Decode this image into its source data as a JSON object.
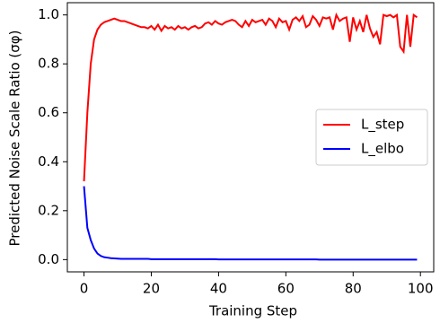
{
  "chart_data": {
    "type": "line",
    "xlabel": "Training Step",
    "ylabel": "Predicted Noise Scale Ratio (σφ)",
    "x": [
      0,
      1,
      2,
      3,
      4,
      5,
      6,
      7,
      8,
      9,
      10,
      11,
      12,
      13,
      14,
      15,
      16,
      17,
      18,
      19,
      20,
      21,
      22,
      23,
      24,
      25,
      26,
      27,
      28,
      29,
      30,
      31,
      32,
      33,
      34,
      35,
      36,
      37,
      38,
      39,
      40,
      41,
      42,
      43,
      44,
      45,
      46,
      47,
      48,
      49,
      50,
      51,
      52,
      53,
      54,
      55,
      56,
      57,
      58,
      59,
      60,
      61,
      62,
      63,
      64,
      65,
      66,
      67,
      68,
      69,
      70,
      71,
      72,
      73,
      74,
      75,
      76,
      77,
      78,
      79,
      80,
      81,
      82,
      83,
      84,
      85,
      86,
      87,
      88,
      89,
      90,
      91,
      92,
      93,
      94,
      95,
      96,
      97,
      98,
      99
    ],
    "series": [
      {
        "name": "L_step",
        "color": "#ff0000",
        "values": [
          0.32,
          0.6,
          0.8,
          0.9,
          0.94,
          0.96,
          0.97,
          0.975,
          0.98,
          0.985,
          0.98,
          0.975,
          0.975,
          0.97,
          0.965,
          0.96,
          0.955,
          0.95,
          0.95,
          0.945,
          0.955,
          0.94,
          0.96,
          0.935,
          0.955,
          0.945,
          0.95,
          0.94,
          0.955,
          0.945,
          0.95,
          0.94,
          0.95,
          0.955,
          0.945,
          0.95,
          0.965,
          0.97,
          0.96,
          0.975,
          0.965,
          0.96,
          0.97,
          0.975,
          0.98,
          0.975,
          0.96,
          0.95,
          0.975,
          0.955,
          0.98,
          0.97,
          0.975,
          0.98,
          0.96,
          0.985,
          0.975,
          0.95,
          0.985,
          0.97,
          0.975,
          0.94,
          0.98,
          0.99,
          0.975,
          0.995,
          0.95,
          0.96,
          0.995,
          0.98,
          0.955,
          0.99,
          0.985,
          0.99,
          0.94,
          1.0,
          0.975,
          0.985,
          0.99,
          0.89,
          0.99,
          0.94,
          0.975,
          0.93,
          1.0,
          0.945,
          0.91,
          0.93,
          0.88,
          1.0,
          0.995,
          1.0,
          0.99,
          1.0,
          0.87,
          0.85,
          1.0,
          0.87,
          1.0,
          0.99
        ]
      },
      {
        "name": "L_elbo",
        "color": "#0000ff",
        "values": [
          0.3,
          0.13,
          0.08,
          0.045,
          0.025,
          0.015,
          0.01,
          0.008,
          0.006,
          0.005,
          0.004,
          0.003,
          0.003,
          0.003,
          0.003,
          0.003,
          0.003,
          0.003,
          0.003,
          0.003,
          0.002,
          0.002,
          0.002,
          0.002,
          0.002,
          0.002,
          0.002,
          0.002,
          0.002,
          0.002,
          0.002,
          0.002,
          0.002,
          0.002,
          0.002,
          0.002,
          0.002,
          0.002,
          0.002,
          0.002,
          0.001,
          0.001,
          0.001,
          0.001,
          0.001,
          0.001,
          0.001,
          0.001,
          0.001,
          0.001,
          0.001,
          0.001,
          0.001,
          0.001,
          0.001,
          0.001,
          0.001,
          0.001,
          0.001,
          0.001,
          0.001,
          0.001,
          0.001,
          0.001,
          0.001,
          0.001,
          0.001,
          0.001,
          0.001,
          0.001,
          0,
          0,
          0,
          0,
          0,
          0,
          0,
          0,
          0,
          0,
          0,
          0,
          0,
          0,
          0,
          0,
          0,
          0,
          0,
          0,
          0,
          0,
          0,
          0,
          0,
          0,
          0,
          0,
          0,
          0
        ]
      }
    ],
    "xlim": [
      -4.95,
      103.95
    ],
    "xticks": [
      0,
      20,
      40,
      60,
      80,
      100
    ],
    "ylim": [
      -0.05,
      1.05
    ],
    "yticks": [
      {
        "value": 0,
        "label": "0.0"
      },
      {
        "value": 0.2,
        "label": "0.2"
      },
      {
        "value": 0.4,
        "label": "0.4"
      },
      {
        "value": 0.6,
        "label": "0.6"
      },
      {
        "value": 0.8,
        "label": "0.8"
      },
      {
        "value": 1,
        "label": "1.0"
      }
    ],
    "grid": false,
    "legend": "center right"
  }
}
